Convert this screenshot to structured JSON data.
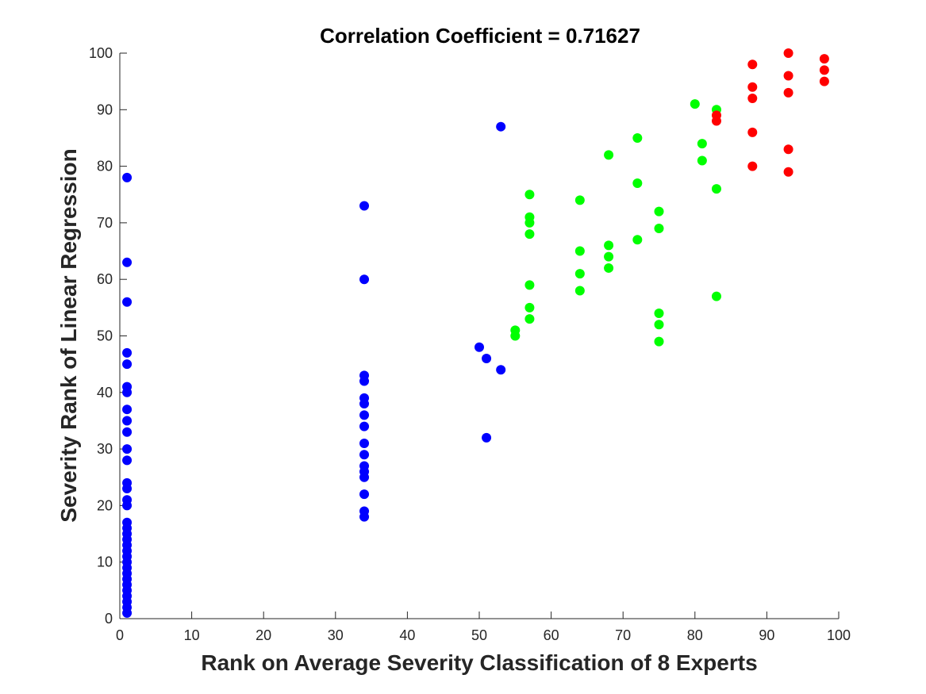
{
  "chart_data": {
    "type": "scatter",
    "title": "Correlation Coefficient = 0.71627",
    "xlabel": "Rank on Average Severity Classification of 8 Experts",
    "ylabel": "Severity Rank of Linear Regression",
    "xlim": [
      0,
      100
    ],
    "ylim": [
      0,
      100
    ],
    "xticks": [
      "0",
      "10",
      "20",
      "30",
      "40",
      "50",
      "60",
      "70",
      "80",
      "90",
      "100"
    ],
    "yticks": [
      "0",
      "10",
      "20",
      "30",
      "40",
      "50",
      "60",
      "70",
      "80",
      "90",
      "100"
    ],
    "grid": false,
    "series": [
      {
        "color": "#0000ff",
        "points": [
          [
            1,
            1
          ],
          [
            1,
            2
          ],
          [
            1,
            3
          ],
          [
            1,
            4
          ],
          [
            1,
            5
          ],
          [
            1,
            6
          ],
          [
            1,
            7
          ],
          [
            1,
            8
          ],
          [
            1,
            9
          ],
          [
            1,
            10
          ],
          [
            1,
            11
          ],
          [
            1,
            12
          ],
          [
            1,
            13
          ],
          [
            1,
            14
          ],
          [
            1,
            15
          ],
          [
            1,
            16
          ],
          [
            1,
            17
          ],
          [
            1,
            20
          ],
          [
            1,
            21
          ],
          [
            1,
            23
          ],
          [
            1,
            24
          ],
          [
            1,
            28
          ],
          [
            1,
            30
          ],
          [
            1,
            33
          ],
          [
            1,
            35
          ],
          [
            1,
            37
          ],
          [
            1,
            40
          ],
          [
            1,
            41
          ],
          [
            1,
            45
          ],
          [
            1,
            47
          ],
          [
            1,
            56
          ],
          [
            1,
            63
          ],
          [
            1,
            78
          ],
          [
            34,
            18
          ],
          [
            34,
            19
          ],
          [
            34,
            22
          ],
          [
            34,
            25
          ],
          [
            34,
            26
          ],
          [
            34,
            27
          ],
          [
            34,
            29
          ],
          [
            34,
            31
          ],
          [
            34,
            34
          ],
          [
            34,
            36
          ],
          [
            34,
            38
          ],
          [
            34,
            39
          ],
          [
            34,
            42
          ],
          [
            34,
            43
          ],
          [
            34,
            60
          ],
          [
            34,
            73
          ],
          [
            50,
            48
          ],
          [
            51,
            46
          ],
          [
            51,
            32
          ],
          [
            53,
            44
          ],
          [
            53,
            87
          ]
        ]
      },
      {
        "color": "#00ff00",
        "points": [
          [
            55,
            50
          ],
          [
            55,
            51
          ],
          [
            57,
            53
          ],
          [
            57,
            55
          ],
          [
            57,
            59
          ],
          [
            57,
            68
          ],
          [
            57,
            70
          ],
          [
            57,
            71
          ],
          [
            57,
            75
          ],
          [
            64,
            58
          ],
          [
            64,
            61
          ],
          [
            64,
            65
          ],
          [
            64,
            74
          ],
          [
            68,
            62
          ],
          [
            68,
            64
          ],
          [
            68,
            66
          ],
          [
            68,
            82
          ],
          [
            72,
            67
          ],
          [
            72,
            77
          ],
          [
            72,
            85
          ],
          [
            75,
            49
          ],
          [
            75,
            52
          ],
          [
            75,
            54
          ],
          [
            75,
            69
          ],
          [
            75,
            72
          ],
          [
            80,
            91
          ],
          [
            81,
            81
          ],
          [
            81,
            84
          ],
          [
            83,
            57
          ],
          [
            83,
            76
          ],
          [
            83,
            90
          ]
        ]
      },
      {
        "color": "#ff0000",
        "points": [
          [
            83,
            88
          ],
          [
            83,
            89
          ],
          [
            88,
            80
          ],
          [
            88,
            86
          ],
          [
            88,
            92
          ],
          [
            88,
            94
          ],
          [
            88,
            98
          ],
          [
            93,
            79
          ],
          [
            93,
            83
          ],
          [
            93,
            93
          ],
          [
            93,
            96
          ],
          [
            93,
            100
          ],
          [
            98,
            95
          ],
          [
            98,
            97
          ],
          [
            98,
            99
          ]
        ]
      }
    ]
  }
}
